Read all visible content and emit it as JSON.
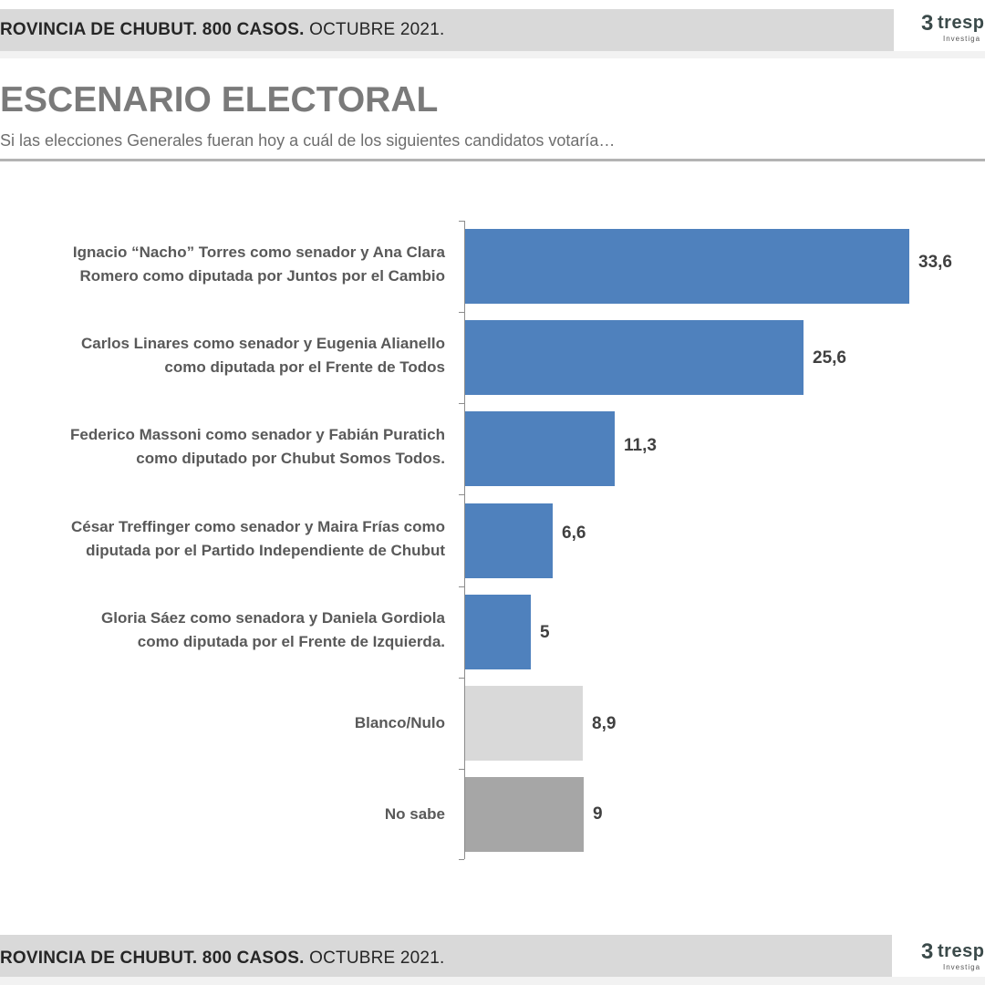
{
  "header": {
    "band_bold": "ROVINCIA DE CHUBUT. 800 CASOS.",
    "band_light": " OCTUBRE 2021.",
    "logo_mark": "3",
    "logo_word": "tresp",
    "logo_sub": "Investiga"
  },
  "title": "ESCENARIO ELECTORAL",
  "subtitle": "Si las elecciones Generales fueran hoy a cuál de los siguientes candidatos votaría…",
  "footer": {
    "band_bold": "ROVINCIA DE CHUBUT. 800 CASOS.",
    "band_light": " OCTUBRE 2021.",
    "logo_mark": "3",
    "logo_word": "tresp",
    "logo_sub": "Investiga"
  },
  "colors": {
    "candidate_bar": "#4f81bd",
    "blanco_bar": "#d9d9d9",
    "nosabe_bar": "#a6a6a6"
  },
  "chart_data": {
    "type": "bar",
    "orientation": "horizontal",
    "title": "ESCENARIO ELECTORAL",
    "subtitle": "Si las elecciones Generales fueran hoy a cuál de los siguientes candidatos votaría…",
    "xlabel": "",
    "ylabel": "",
    "grid": false,
    "legend": null,
    "xlim": [
      0,
      35
    ],
    "categories": [
      "Ignacio “Nacho” Torres como senador y Ana Clara Romero como diputada por Juntos por el Cambio",
      "Carlos Linares como senador y Eugenia Alianello como diputada por el Frente de Todos",
      "Federico Massoni como senador y Fabián Puratich como diputado por Chubut Somos Todos.",
      "César Treffinger como senador y Maira Frías como diputada por el Partido Independiente de Chubut",
      "Gloria Sáez como senadora y Daniela Gordiola como diputada por el Frente de Izquierda.",
      "Blanco/Nulo",
      "No sabe"
    ],
    "values": [
      33.6,
      25.6,
      11.3,
      6.6,
      5,
      8.9,
      9
    ],
    "value_labels": [
      "33,6",
      "25,6",
      "11,3",
      "6,6",
      "5",
      "8,9",
      "9"
    ],
    "bars": [
      {
        "label_line1": "Ignacio “Nacho” Torres como senador y Ana Clara",
        "label_line2": "Romero como diputada por Juntos por el Cambio",
        "value": 33.6,
        "value_label": "33,6",
        "color": "#4f81bd"
      },
      {
        "label_line1": "Carlos Linares como senador y Eugenia Alianello",
        "label_line2": "como diputada por el Frente de Todos",
        "value": 25.6,
        "value_label": "25,6",
        "color": "#4f81bd"
      },
      {
        "label_line1": "Federico Massoni como senador y Fabián Puratich",
        "label_line2": "como diputado por Chubut Somos Todos.",
        "value": 11.3,
        "value_label": "11,3",
        "color": "#4f81bd"
      },
      {
        "label_line1": "César Treffinger como senador y Maira Frías como",
        "label_line2": "diputada por el Partido Independiente de Chubut",
        "value": 6.6,
        "value_label": "6,6",
        "color": "#4f81bd"
      },
      {
        "label_line1": "Gloria Sáez como senadora y Daniela Gordiola",
        "label_line2": "como diputada por el Frente de Izquierda.",
        "value": 5,
        "value_label": "5",
        "color": "#4f81bd"
      },
      {
        "label_line1": "Blanco/Nulo",
        "label_line2": "",
        "value": 8.9,
        "value_label": "8,9",
        "color": "#d9d9d9"
      },
      {
        "label_line1": "No sabe",
        "label_line2": "",
        "value": 9,
        "value_label": "9",
        "color": "#a6a6a6"
      }
    ]
  }
}
